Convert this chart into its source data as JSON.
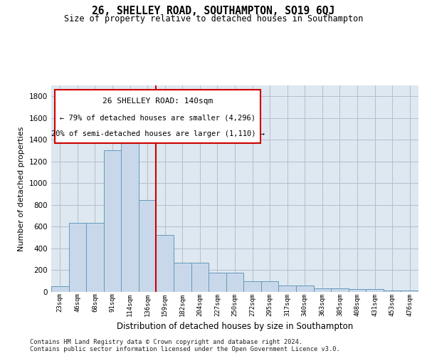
{
  "title": "26, SHELLEY ROAD, SOUTHAMPTON, SO19 6QJ",
  "subtitle": "Size of property relative to detached houses in Southampton",
  "xlabel": "Distribution of detached houses by size in Southampton",
  "ylabel": "Number of detached properties",
  "footnote1": "Contains HM Land Registry data © Crown copyright and database right 2024.",
  "footnote2": "Contains public sector information licensed under the Open Government Licence v3.0.",
  "annotation_title": "26 SHELLEY ROAD: 140sqm",
  "annotation_line1": "← 79% of detached houses are smaller (4,296)",
  "annotation_line2": "20% of semi-detached houses are larger (1,110) →",
  "bar_color": "#c8d8ea",
  "bar_edge_color": "#6699bb",
  "vline_color": "#cc0000",
  "vline_x": 5.5,
  "annotation_box_color": "#cc0000",
  "background_color": "#ffffff",
  "plot_bg_color": "#dde8f0",
  "grid_color": "#bbbbcc",
  "categories": [
    "23sqm",
    "46sqm",
    "68sqm",
    "91sqm",
    "114sqm",
    "136sqm",
    "159sqm",
    "182sqm",
    "204sqm",
    "227sqm",
    "250sqm",
    "272sqm",
    "295sqm",
    "317sqm",
    "340sqm",
    "363sqm",
    "385sqm",
    "408sqm",
    "431sqm",
    "453sqm",
    "476sqm"
  ],
  "values": [
    50,
    635,
    635,
    1305,
    1375,
    845,
    525,
    270,
    270,
    175,
    175,
    100,
    100,
    60,
    60,
    35,
    35,
    25,
    25,
    15,
    15
  ],
  "ylim": [
    0,
    1900
  ],
  "yticks": [
    0,
    200,
    400,
    600,
    800,
    1000,
    1200,
    1400,
    1600,
    1800
  ]
}
